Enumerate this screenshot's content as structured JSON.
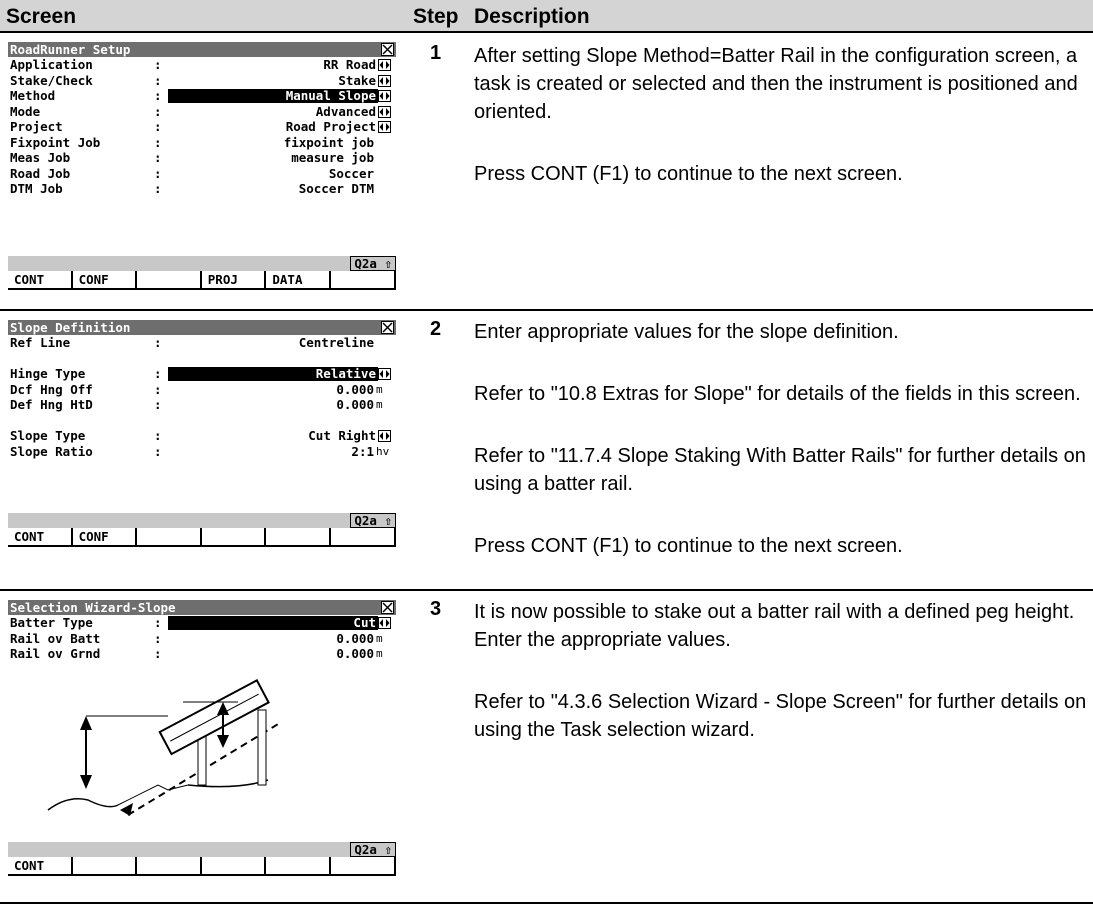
{
  "table": {
    "header": [
      "Screen",
      "Step",
      "Description"
    ],
    "rows": [
      {
        "screen": {
          "title": "RoadRunner Setup",
          "status": "Q2a ⇧",
          "fields": [
            {
              "label": "Application",
              "sep": ":",
              "value": "RR Road",
              "arrows": true
            },
            {
              "label": "Stake/Check",
              "sep": ":",
              "value": "Stake",
              "arrows": true
            },
            {
              "label": "Method",
              "sep": ":",
              "value": "Manual Slope",
              "arrows": true,
              "highlight": true
            },
            {
              "label": "Mode",
              "sep": ":",
              "value": "Advanced",
              "arrows": true
            },
            {
              "label": "Project",
              "sep": ":",
              "value": "Road Project",
              "arrows": true
            },
            {
              "label": "Fixpoint Job",
              "sep": ":",
              "value": "fixpoint job"
            },
            {
              "label": "Meas Job",
              "sep": ":",
              "value": "measure job"
            },
            {
              "label": "Road Job",
              "sep": ":",
              "value": "Soccer"
            },
            {
              "label": "DTM Job",
              "sep": ":",
              "value": "Soccer DTM"
            }
          ],
          "keys": [
            "CONT",
            "CONF",
            null,
            "PROJ",
            "DATA",
            null
          ]
        },
        "step": "1",
        "description": [
          "After setting Slope Method=Batter Rail in the configuration screen, a task is created or selected and then the instrument is positioned and oriented.",
          "Press CONT (F1) to continue to the next screen."
        ]
      },
      {
        "screen": {
          "title": "Slope Definition",
          "status": "Q2a ⇧",
          "fields": [
            {
              "label": "Ref Line",
              "sep": ":",
              "value": "Centreline"
            },
            null,
            {
              "label": "Hinge Type",
              "sep": ":",
              "value": "Relative",
              "arrows": true,
              "highlight": true
            },
            {
              "label": "Dcf Hng Off",
              "sep": ":",
              "value": "0.000",
              "unit": "m"
            },
            {
              "label": "Def Hng HtD",
              "sep": ":",
              "value": "0.000",
              "unit": "m"
            },
            null,
            {
              "label": "Slope Type",
              "sep": ":",
              "value": "Cut Right",
              "arrows": true
            },
            {
              "label": "Slope Ratio",
              "sep": ":",
              "value": "2:1",
              "unit": "hv"
            }
          ],
          "keys": [
            "CONT",
            "CONF",
            null,
            null,
            null,
            null
          ]
        },
        "step": "2",
        "description": [
          "Enter appropriate values for the slope definition.",
          "Refer to \"10.8 Extras for Slope\" for details of the fields in this screen.",
          "Refer to \"11.7.4 Slope Staking With Batter Rails\" for further details on using a batter rail.",
          "Press CONT (F1) to continue to the next screen."
        ]
      },
      {
        "screen": {
          "title": "Selection Wizard-Slope",
          "status": "Q2a ⇧",
          "fields": [
            {
              "label": "Batter Type",
              "sep": ":",
              "value": "Cut",
              "arrows": true,
              "highlight": true
            },
            {
              "label": "Rail ov Batt",
              "sep": ":",
              "value": "0.000",
              "unit": "m"
            },
            {
              "label": "Rail ov Grnd",
              "sep": ":",
              "value": "0.000",
              "unit": "m"
            }
          ],
          "keys": [
            "CONT",
            null,
            null,
            null,
            null,
            null
          ]
        },
        "step": "3",
        "description": [
          "It is now possible to stake out a batter rail with a defined peg height. Enter the appropriate values.",
          "Refer to \"4.3.6 Selection Wizard - Slope Screen\" for further details on using the Task selection wizard."
        ]
      }
    ]
  }
}
